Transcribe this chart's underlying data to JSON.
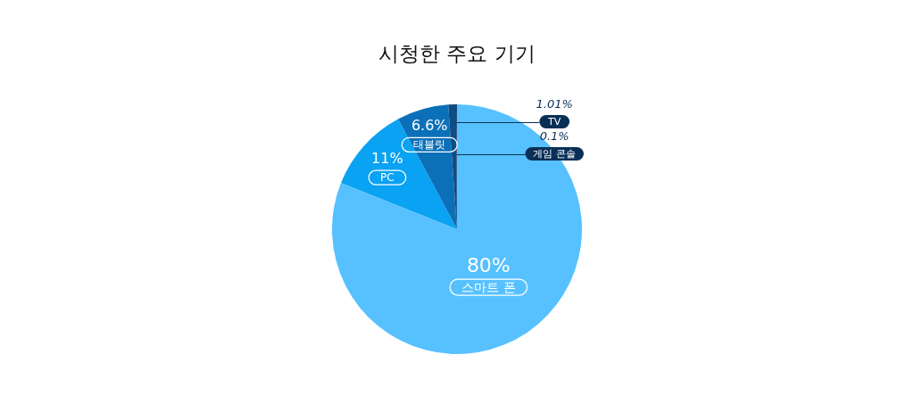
{
  "chart_data": {
    "type": "pie",
    "title": "시청한 주요 기기",
    "categories": [
      "스마트 폰",
      "PC",
      "태블릿",
      "TV",
      "게임 콘솔"
    ],
    "values": [
      80,
      11,
      6.6,
      1.01,
      0.1
    ],
    "colors": [
      "#57c1ff",
      "#0aa2f2",
      "#0b70b8",
      "#0b4d86",
      "#0a2f57"
    ],
    "value_labels": [
      "80%",
      "11%",
      "6.6%",
      "1.01%",
      "0.1%"
    ],
    "legend": false
  }
}
